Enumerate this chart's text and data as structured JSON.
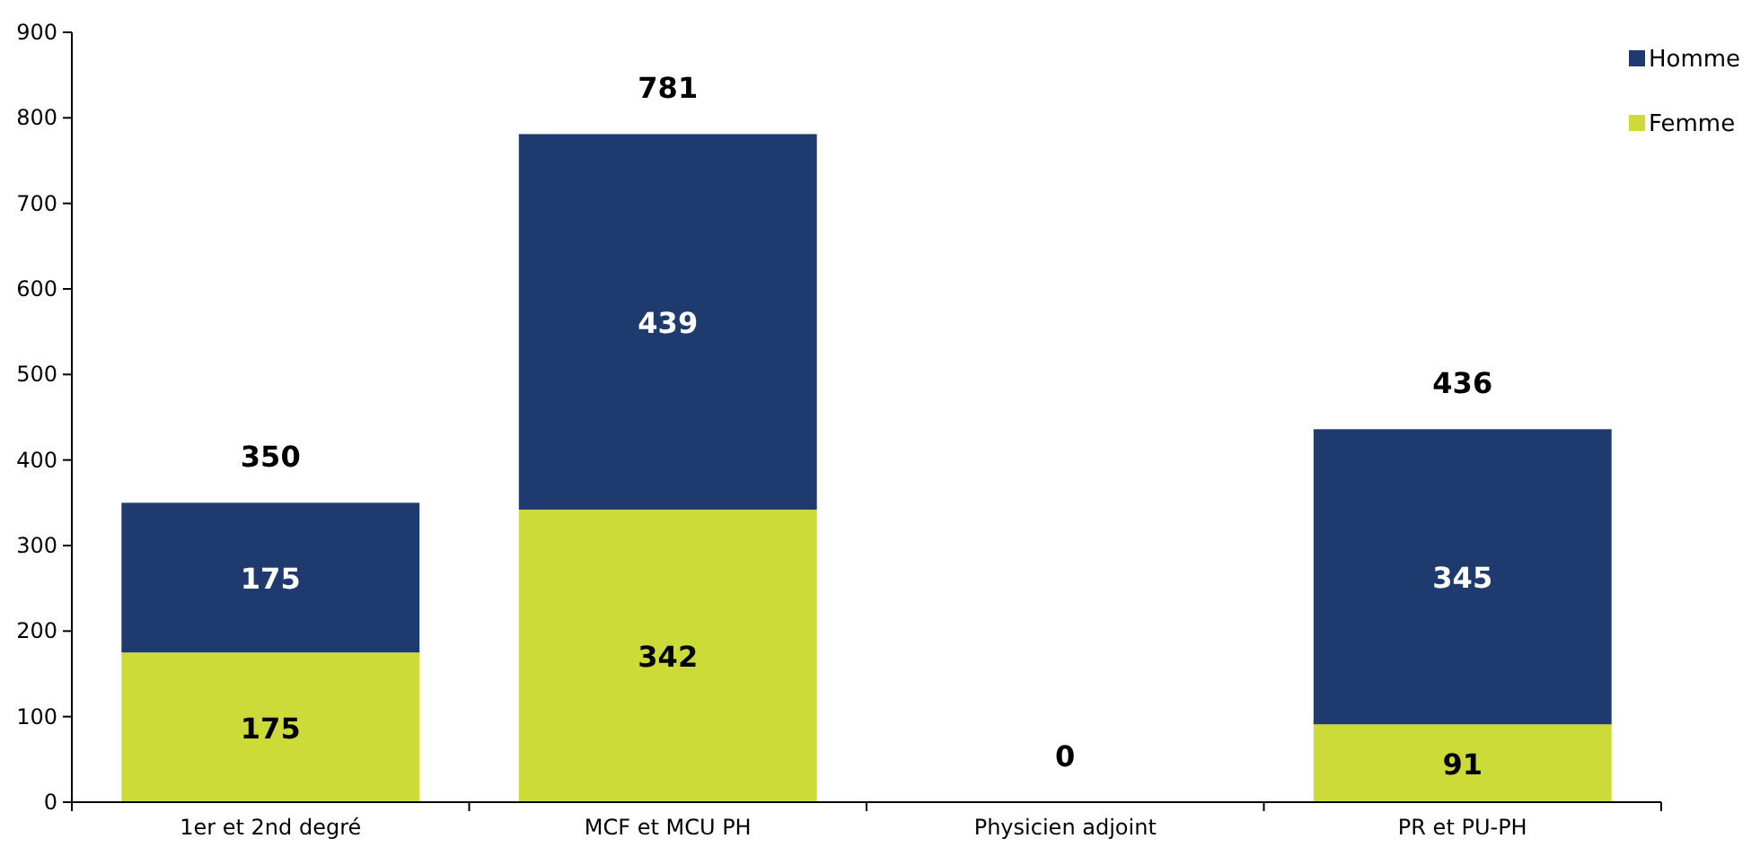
{
  "chart_data": {
    "type": "bar",
    "stacked": true,
    "categories": [
      "1er et 2nd degré",
      "MCF et MCU PH",
      "Physicien adjoint",
      "PR et PU-PH"
    ],
    "series": [
      {
        "name": "Femme",
        "color": "#cddb38",
        "values": [
          175,
          342,
          0,
          91
        ],
        "value_labels": [
          "175",
          "342",
          null,
          "91"
        ]
      },
      {
        "name": "Homme",
        "color": "#1f3a6e",
        "values": [
          175,
          439,
          0,
          345
        ],
        "value_labels": [
          "175",
          "439",
          null,
          "345"
        ]
      }
    ],
    "totals": [
      "350",
      "781",
      "0",
      "436"
    ],
    "ylim": [
      0,
      900
    ],
    "yticks": [
      0,
      100,
      200,
      300,
      400,
      500,
      600,
      700,
      800,
      900
    ],
    "grid": false,
    "legend": "top right"
  }
}
